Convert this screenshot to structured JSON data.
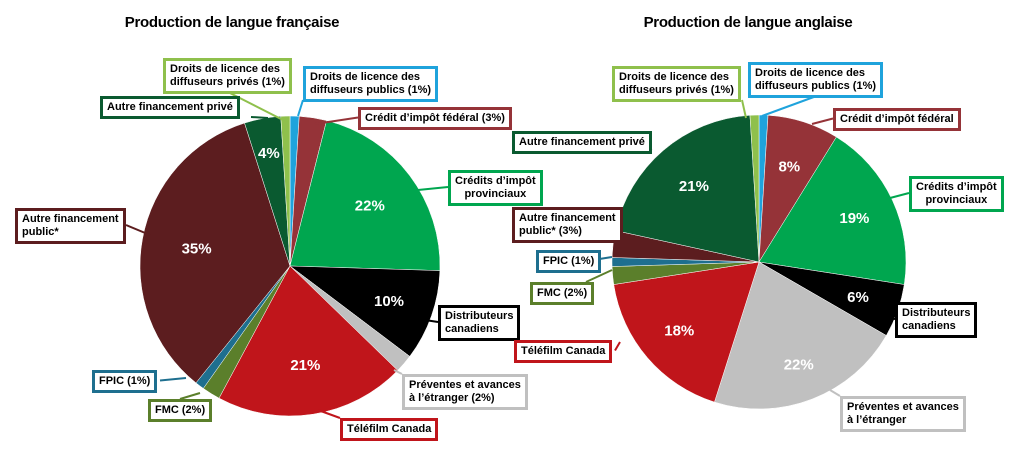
{
  "chart_data": [
    {
      "type": "pie",
      "title": "Production de langue française",
      "slices": [
        {
          "label": "Droits de licence des diffuseurs publics (1%)",
          "value": 1,
          "pct_label": "",
          "color": "#1fa3dc"
        },
        {
          "label": "Crédit d’impôt fédéral (3%)",
          "value": 3,
          "pct_label": "",
          "color": "#953338"
        },
        {
          "label": "Crédits d’impôt provinciaux",
          "value": 22,
          "pct_label": "22%",
          "color": "#00a64f"
        },
        {
          "label": "Distributeurs canadiens",
          "value": 10,
          "pct_label": "10%",
          "color": "#000000"
        },
        {
          "label": "Préventes et avances à l’étranger (2%)",
          "value": 2,
          "pct_label": "",
          "color": "#c0c0c0"
        },
        {
          "label": "Téléfilm Canada",
          "value": 21,
          "pct_label": "21%",
          "color": "#c0151b"
        },
        {
          "label": "FMC (2%)",
          "value": 2,
          "pct_label": "",
          "color": "#5b7f2b"
        },
        {
          "label": "FPIC (1%)",
          "value": 1,
          "pct_label": "",
          "color": "#1e6f8f"
        },
        {
          "label": "Autre financement public*",
          "value": 35,
          "pct_label": "35%",
          "color": "#5c1d1f"
        },
        {
          "label": "Autre financement privé",
          "value": 4,
          "pct_label": "4%",
          "color": "#0a5a30"
        },
        {
          "label": "Droits de licence des diffuseurs privés (1%)",
          "value": 1,
          "pct_label": "",
          "color": "#8fc04c"
        }
      ]
    },
    {
      "type": "pie",
      "title": "Production de langue anglaise",
      "slices": [
        {
          "label": "Droits de licence des diffuseurs publics (1%)",
          "value": 1,
          "pct_label": "",
          "color": "#1fa3dc"
        },
        {
          "label": "Crédit d’impôt fédéral",
          "value": 8,
          "pct_label": "8%",
          "color": "#953338"
        },
        {
          "label": "Crédits d’impôt provinciaux",
          "value": 19,
          "pct_label": "19%",
          "color": "#00a64f"
        },
        {
          "label": "Distributeurs canadiens",
          "value": 6,
          "pct_label": "6%",
          "color": "#000000"
        },
        {
          "label": "Préventes et avances à l’étranger",
          "value": 22,
          "pct_label": "22%",
          "color": "#c0c0c0"
        },
        {
          "label": "Téléfilm Canada",
          "value": 18,
          "pct_label": "18%",
          "color": "#c0151b"
        },
        {
          "label": "FMC (2%)",
          "value": 2,
          "pct_label": "",
          "color": "#5b7f2b"
        },
        {
          "label": "FPIC (1%)",
          "value": 1,
          "pct_label": "",
          "color": "#1e6f8f"
        },
        {
          "label": "Autre financement public* (3%)",
          "value": 3,
          "pct_label": "",
          "color": "#5c1d1f"
        },
        {
          "label": "Autre financement privé",
          "value": 21,
          "pct_label": "21%",
          "color": "#0a5a30"
        },
        {
          "label": "Droits de licence des diffuseurs privés (1%)",
          "value": 1,
          "pct_label": "",
          "color": "#8fc04c"
        }
      ]
    }
  ],
  "callouts": {
    "left": [
      {
        "lines": [
          "Droits de licence des",
          "diffuseurs privés (1%)"
        ]
      },
      {
        "lines": [
          "Droits de licence des",
          "diffuseurs publics (1%)"
        ]
      },
      {
        "lines": [
          "Autre financement privé"
        ]
      },
      {
        "lines": [
          "Crédit d’impôt fédéral (3%)"
        ]
      },
      {
        "lines": [
          "Crédits d’impôt",
          "provinciaux"
        ]
      },
      {
        "lines": [
          "Autre financement",
          "public*"
        ]
      },
      {
        "lines": [
          "Distributeurs",
          "canadiens"
        ]
      },
      {
        "lines": [
          "FPIC (1%)"
        ]
      },
      {
        "lines": [
          "Préventes et avances",
          "à l’étranger (2%)"
        ]
      },
      {
        "lines": [
          "FMC (2%)"
        ]
      },
      {
        "lines": [
          "Téléfilm Canada"
        ]
      }
    ],
    "right": [
      {
        "lines": [
          "Droits de licence des",
          "diffuseurs privés (1%)"
        ]
      },
      {
        "lines": [
          "Droits de licence des",
          "diffuseurs publics (1%)"
        ]
      },
      {
        "lines": [
          "Crédit d’impôt fédéral"
        ]
      },
      {
        "lines": [
          "Autre financement privé"
        ]
      },
      {
        "lines": [
          "Crédits d’impôt",
          "provinciaux"
        ]
      },
      {
        "lines": [
          "Autre financement",
          "public* (3%)"
        ]
      },
      {
        "lines": [
          "FPIC (1%)"
        ]
      },
      {
        "lines": [
          "FMC (2%)"
        ]
      },
      {
        "lines": [
          "Distributeurs",
          "canadiens"
        ]
      },
      {
        "lines": [
          "Téléfilm Canada"
        ]
      },
      {
        "lines": [
          "Préventes et avances",
          "à l’étranger"
        ]
      }
    ]
  }
}
